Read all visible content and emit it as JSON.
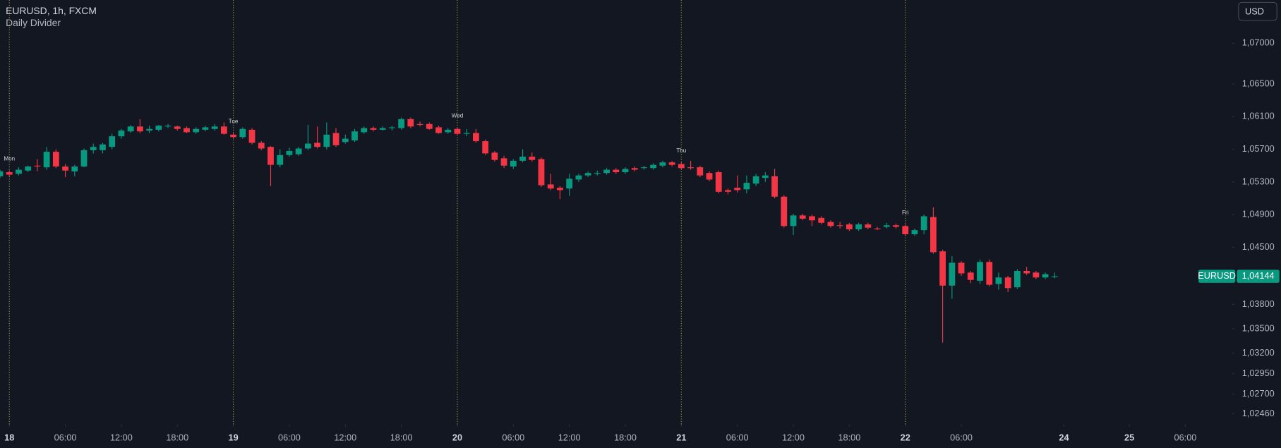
{
  "chart_data": {
    "type": "candlestick",
    "title": "EURUSD, 1h, FXCM",
    "subtitle": "Daily Divider",
    "currency_button": "USD",
    "up_color": "#089981",
    "down_color": "#f23645",
    "divider_color": "#9a9a3c",
    "open": [
      1.0537,
      1.0542,
      1.054,
      1.0544,
      1.055,
      1.0548,
      1.0567,
      1.0549,
      1.0543,
      1.0549,
      1.0569,
      1.0569,
      1.0573,
      1.0586,
      1.0592,
      1.0598,
      1.0593,
      1.0594,
      1.0598,
      1.0598,
      1.0596,
      1.0591,
      1.0594,
      1.0595,
      1.0598,
      1.0588,
      1.0585,
      1.0594,
      1.0578,
      1.0573,
      1.0551,
      1.0563,
      1.0564,
      1.0571,
      1.0578,
      1.0573,
      1.059,
      1.0579,
      1.0581,
      1.0591,
      1.0596,
      1.0594,
      1.0596,
      1.0596,
      1.0607,
      1.0601,
      1.0601,
      1.0597,
      1.0591,
      1.0595,
      1.059,
      1.059,
      1.058,
      1.0566,
      1.0559,
      1.0549,
      1.0556,
      1.0561,
      1.0558,
      1.0527,
      1.0523,
      1.0522,
      1.0533,
      1.0538,
      1.0541,
      1.0541,
      1.0545,
      1.0542,
      1.0547,
      1.0548,
      1.0547,
      1.055,
      1.0554,
      1.0552,
      1.0548,
      1.0548,
      1.0541,
      1.0542,
      1.052,
      1.0523,
      1.0521,
      1.0528,
      1.0535,
      1.0537,
      1.0512,
      1.0476,
      1.0489,
      1.0488,
      1.0486,
      1.0481,
      1.0477,
      1.0478,
      1.0472,
      1.0478,
      1.0473,
      1.0475,
      1.0477,
      1.0476,
      1.0466,
      1.0471,
      1.0487,
      1.0445,
      1.0403,
      1.0431,
      1.0419,
      1.0409,
      1.0432,
      1.0405,
      1.0413,
      1.0401,
      1.0421,
      1.0419,
      1.0413,
      1.0414
    ],
    "high": [
      1.0545,
      1.0544,
      1.0548,
      1.055,
      1.0558,
      1.0573,
      1.057,
      1.0552,
      1.0551,
      1.0571,
      1.0577,
      1.0578,
      1.0589,
      1.0595,
      1.06,
      1.0607,
      1.0599,
      1.06,
      1.0601,
      1.0599,
      1.0598,
      1.0597,
      1.0599,
      1.0601,
      1.0603,
      1.059,
      1.0597,
      1.0596,
      1.058,
      1.0574,
      1.057,
      1.0572,
      1.0573,
      1.06,
      1.0598,
      1.0603,
      1.0596,
      1.0588,
      1.0595,
      1.0598,
      1.0598,
      1.0598,
      1.0599,
      1.0609,
      1.0609,
      1.0604,
      1.0603,
      1.0599,
      1.0596,
      1.0597,
      1.0595,
      1.0595,
      1.0582,
      1.0568,
      1.0562,
      1.0558,
      1.057,
      1.0566,
      1.056,
      1.054,
      1.0525,
      1.054,
      1.054,
      1.0543,
      1.0544,
      1.0547,
      1.0547,
      1.0548,
      1.0549,
      1.055,
      1.0553,
      1.0556,
      1.0556,
      1.0554,
      1.0556,
      1.055,
      1.0543,
      1.0544,
      1.0522,
      1.0538,
      1.0538,
      1.054,
      1.0542,
      1.0546,
      1.0514,
      1.0491,
      1.0491,
      1.049,
      1.0488,
      1.0483,
      1.0481,
      1.048,
      1.048,
      1.048,
      1.0475,
      1.048,
      1.0479,
      1.0478,
      1.0473,
      1.049,
      1.0499,
      1.0447,
      1.0439,
      1.0433,
      1.0421,
      1.0435,
      1.0435,
      1.0419,
      1.0415,
      1.0423,
      1.0426,
      1.0421,
      1.0419,
      1.0419
    ],
    "low": [
      1.0535,
      1.0537,
      1.0538,
      1.0542,
      1.0543,
      1.0545,
      1.0547,
      1.0536,
      1.0537,
      1.0548,
      1.0565,
      1.0565,
      1.057,
      1.0583,
      1.059,
      1.059,
      1.059,
      1.0592,
      1.0596,
      1.0593,
      1.059,
      1.0589,
      1.0592,
      1.0593,
      1.0588,
      1.0583,
      1.0583,
      1.0576,
      1.0569,
      1.0525,
      1.0548,
      1.0561,
      1.0562,
      1.0569,
      1.0571,
      1.057,
      1.0573,
      1.0577,
      1.0579,
      1.0589,
      1.0592,
      1.0593,
      1.0593,
      1.0594,
      1.0596,
      1.0598,
      1.0594,
      1.0589,
      1.0589,
      1.0587,
      1.0586,
      1.0578,
      1.0563,
      1.0555,
      1.0547,
      1.0546,
      1.0554,
      1.0555,
      1.0524,
      1.052,
      1.0509,
      1.0513,
      1.053,
      1.0536,
      1.0538,
      1.0539,
      1.054,
      1.054,
      1.0543,
      1.0545,
      1.0545,
      1.0548,
      1.0549,
      1.0545,
      1.0545,
      1.0536,
      1.0531,
      1.0516,
      1.0515,
      1.0517,
      1.0516,
      1.0525,
      1.053,
      1.051,
      1.0474,
      1.0465,
      1.0483,
      1.0476,
      1.0478,
      1.0474,
      1.0473,
      1.047,
      1.047,
      1.0472,
      1.0471,
      1.0473,
      1.0473,
      1.0464,
      1.0464,
      1.0466,
      1.0442,
      1.0333,
      1.0387,
      1.0415,
      1.0406,
      1.0405,
      1.0402,
      1.0398,
      1.0395,
      1.0399,
      1.0416,
      1.0411,
      1.0411,
      1.0412
    ],
    "close": [
      1.0543,
      1.0539,
      1.0545,
      1.0549,
      1.0549,
      1.0567,
      1.0549,
      1.0544,
      1.0549,
      1.0569,
      1.0573,
      1.0576,
      1.0586,
      1.0593,
      1.0598,
      1.0592,
      1.0595,
      1.0599,
      1.0599,
      1.0595,
      1.0591,
      1.0595,
      1.0597,
      1.0598,
      1.0589,
      1.0585,
      1.0595,
      1.0578,
      1.0571,
      1.0551,
      1.0563,
      1.0568,
      1.0571,
      1.0577,
      1.0573,
      1.0588,
      1.0575,
      1.0583,
      1.0592,
      1.0596,
      1.0594,
      1.0596,
      1.0597,
      1.0607,
      1.0598,
      1.06,
      1.0595,
      1.059,
      1.0594,
      1.0589,
      1.059,
      1.058,
      1.0565,
      1.0557,
      1.055,
      1.0556,
      1.0561,
      1.0557,
      1.0526,
      1.0522,
      1.052,
      1.0534,
      1.0538,
      1.0541,
      1.0541,
      1.0545,
      1.0542,
      1.0546,
      1.0545,
      1.0548,
      1.0551,
      1.0554,
      1.0551,
      1.0547,
      1.0547,
      1.0538,
      1.0533,
      1.0518,
      1.0518,
      1.052,
      1.0529,
      1.0537,
      1.0538,
      1.0512,
      1.0476,
      1.0489,
      1.0485,
      1.0483,
      1.048,
      1.0476,
      1.0476,
      1.0472,
      1.0478,
      1.0474,
      1.0472,
      1.0477,
      1.0475,
      1.0466,
      1.0471,
      1.0488,
      1.0444,
      1.0403,
      1.0431,
      1.0418,
      1.041,
      1.0432,
      1.0404,
      1.0413,
      1.04,
      1.0421,
      1.0418,
      1.0413,
      1.0417,
      1.04144
    ],
    "xlim": [
      0,
      132
    ],
    "xticks": [
      {
        "value": 1,
        "label": "18"
      },
      {
        "value": 7,
        "label": "06:00"
      },
      {
        "value": 13,
        "label": "12:00"
      },
      {
        "value": 19,
        "label": "18:00"
      },
      {
        "value": 25,
        "label": "19"
      },
      {
        "value": 31,
        "label": "06:00"
      },
      {
        "value": 37,
        "label": "12:00"
      },
      {
        "value": 43,
        "label": "18:00"
      },
      {
        "value": 49,
        "label": "20"
      },
      {
        "value": 55,
        "label": "06:00"
      },
      {
        "value": 61,
        "label": "12:00"
      },
      {
        "value": 67,
        "label": "18:00"
      },
      {
        "value": 73,
        "label": "21"
      },
      {
        "value": 79,
        "label": "06:00"
      },
      {
        "value": 85,
        "label": "12:00"
      },
      {
        "value": 91,
        "label": "18:00"
      },
      {
        "value": 97,
        "label": "22"
      },
      {
        "value": 103,
        "label": "06:00"
      },
      {
        "value": 114,
        "label": "24"
      },
      {
        "value": 121,
        "label": "25"
      },
      {
        "value": 127,
        "label": "06:00"
      }
    ],
    "dividers": [
      {
        "value": 1,
        "label": "Mon"
      },
      {
        "value": 25,
        "label": "Tue"
      },
      {
        "value": 49,
        "label": "Wed"
      },
      {
        "value": 73,
        "label": "Thu"
      },
      {
        "value": 97,
        "label": "Fri"
      }
    ],
    "ylim": [
      1.0233,
      1.0753
    ],
    "yticks": [
      {
        "value": 1.07,
        "label": "1,07000"
      },
      {
        "value": 1.065,
        "label": "1,06500"
      },
      {
        "value": 1.061,
        "label": "1,06100"
      },
      {
        "value": 1.057,
        "label": "1,05700"
      },
      {
        "value": 1.053,
        "label": "1,05300"
      },
      {
        "value": 1.049,
        "label": "1,04900"
      },
      {
        "value": 1.045,
        "label": "1,04500"
      },
      {
        "value": 1.038,
        "label": "1,03800"
      },
      {
        "value": 1.035,
        "label": "1,03500"
      },
      {
        "value": 1.032,
        "label": "1,03200"
      },
      {
        "value": 1.0295,
        "label": "1,02950"
      },
      {
        "value": 1.027,
        "label": "1,02700"
      },
      {
        "value": 1.0246,
        "label": "1,02460"
      }
    ],
    "last_price": {
      "symbol": "EURUSD",
      "value": 1.04144,
      "label": "1,04144"
    }
  }
}
